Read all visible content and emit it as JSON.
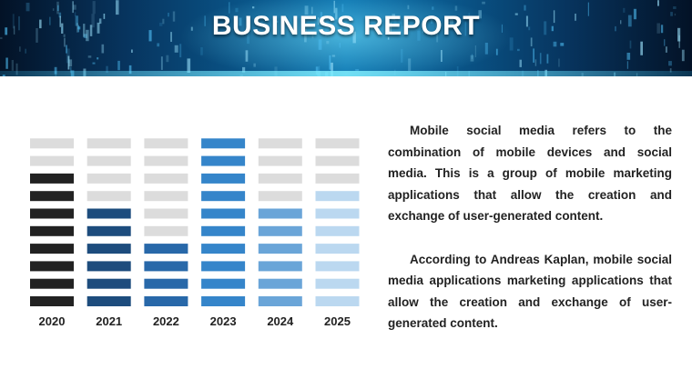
{
  "header": {
    "title": "BUSINESS REPORT"
  },
  "chart_data": {
    "type": "bar",
    "title": "",
    "xlabel": "",
    "ylabel": "",
    "ylim": [
      0,
      10
    ],
    "grid": false,
    "categories": [
      "2020",
      "2021",
      "2022",
      "2023",
      "2024",
      "2025"
    ],
    "values": [
      8,
      6,
      4,
      10,
      6,
      7
    ],
    "colors": [
      "#222222",
      "#1d4c7d",
      "#2868a9",
      "#3585ca",
      "#6aa5d8",
      "#bbd8f0"
    ],
    "empty_color": "#dcdcdc"
  },
  "text": {
    "paragraphs": [
      "Mobile social media refers to the combination of mobile devices and social media. This is a group of mobile marketing applications that allow the creation and exchange of user-generated content.",
      "According to Andreas Kaplan, mobile social media applications marketing applications that allow the creation and exchange of user-generated content."
    ]
  }
}
